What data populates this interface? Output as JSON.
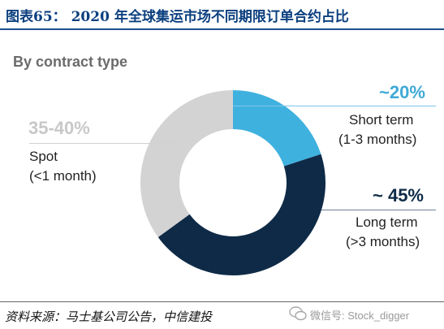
{
  "header": {
    "figure_label": "图表65：",
    "title": "2020 年全球集运市场不同期限订单合约占比"
  },
  "chart_data": {
    "type": "pie",
    "title": "By contract type",
    "slices": [
      {
        "label_pct": "~20%",
        "label_line1": "Short term",
        "label_line2": "(1-3 months)",
        "value": 20,
        "color": "#3fb1df"
      },
      {
        "label_pct": "~ 45%",
        "label_line1": "Long term",
        "label_line2": "(>3 months)",
        "value": 45,
        "color": "#0e2a47"
      },
      {
        "label_pct": "35-40%",
        "label_line1": "Spot",
        "label_line2": "(<1 month)",
        "value": 35,
        "color": "#d3d3d3"
      }
    ]
  },
  "footer": {
    "source": "资料来源：马士基公司公告，中信建投",
    "watermark": "微信号: Stock_digger"
  }
}
